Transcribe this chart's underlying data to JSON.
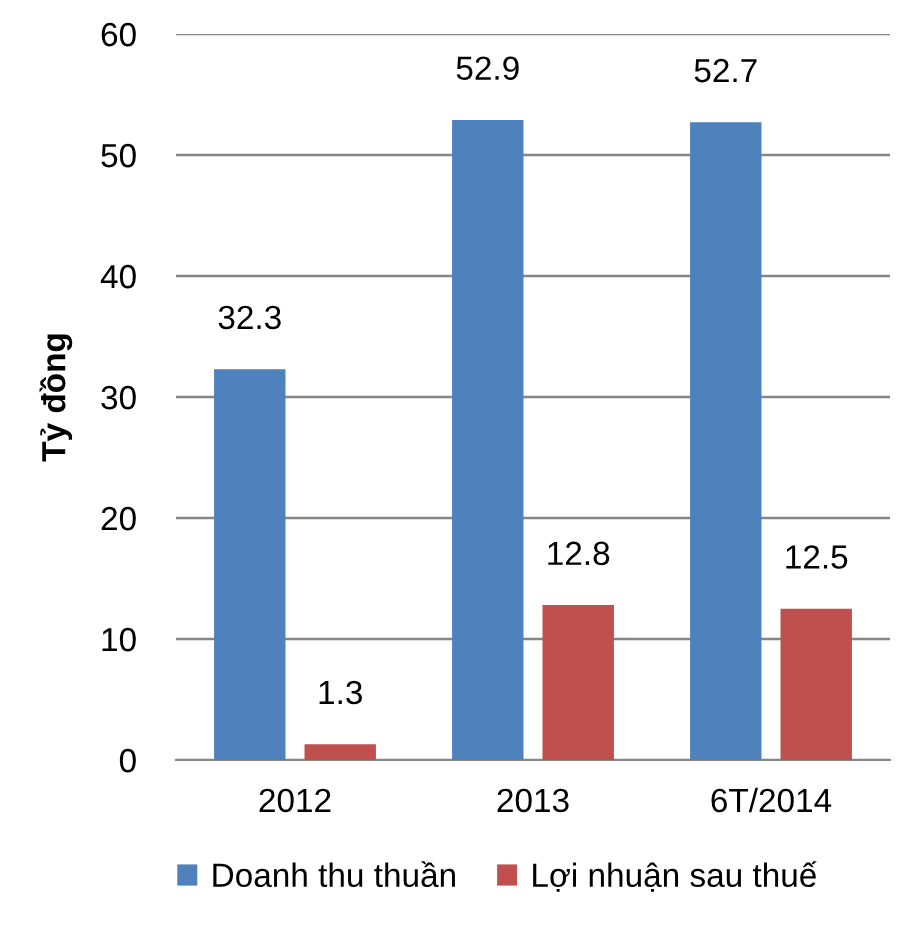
{
  "chart_data": {
    "type": "bar",
    "categories": [
      "2012",
      "2013",
      "6T/2014"
    ],
    "ylabel": "Tỷ đồng",
    "series": [
      {
        "name": "Doanh thu thuần",
        "color": "#4f81bd",
        "values": [
          32.3,
          52.9,
          52.7
        ]
      },
      {
        "name": "Lợi nhuận sau thuế",
        "color": "#c0504d",
        "values": [
          1.3,
          12.8,
          12.5
        ]
      }
    ],
    "ylim": [
      0,
      60
    ],
    "yticks": [
      0,
      10,
      20,
      30,
      40,
      50,
      60
    ],
    "grid": "y",
    "legend": "bottom",
    "data_labels": true
  }
}
